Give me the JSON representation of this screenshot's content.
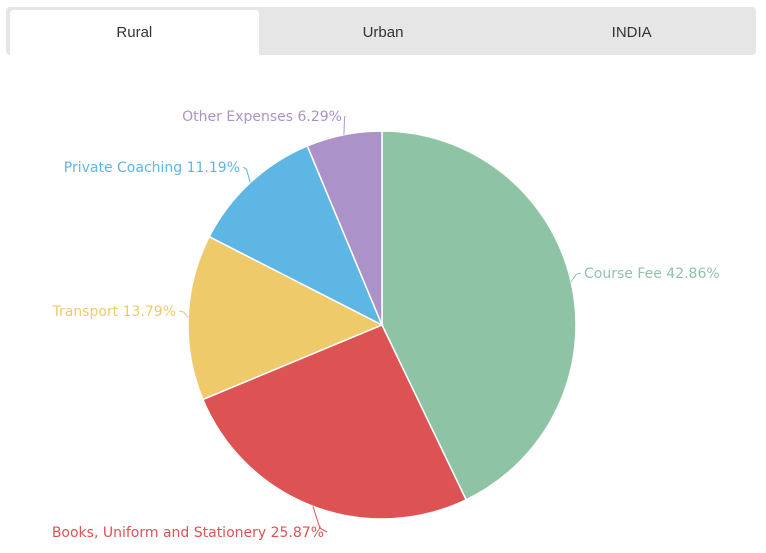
{
  "tabs": [
    {
      "label": "Rural",
      "active": true
    },
    {
      "label": "Urban",
      "active": false
    },
    {
      "label": "INDIA",
      "active": false
    }
  ],
  "chart_data": {
    "type": "pie",
    "title": "",
    "slices": [
      {
        "label": "Course Fee",
        "value": 42.86,
        "display": "Course Fee 42.86%",
        "color": "#8fc3a6"
      },
      {
        "label": "Books, Uniform and Stationery",
        "value": 25.87,
        "display": "Books, Uniform and Stationery 25.87%",
        "color": "#dd5253"
      },
      {
        "label": "Transport",
        "value": 13.79,
        "display": "Transport 13.79%",
        "color": "#eeca6a"
      },
      {
        "label": "Private Coaching",
        "value": 11.19,
        "display": "Private Coaching 11.19%",
        "color": "#5eb6e5"
      },
      {
        "label": "Other Expenses",
        "value": 6.29,
        "display": "Other Expenses 6.29%",
        "color": "#ab92c9"
      }
    ]
  }
}
